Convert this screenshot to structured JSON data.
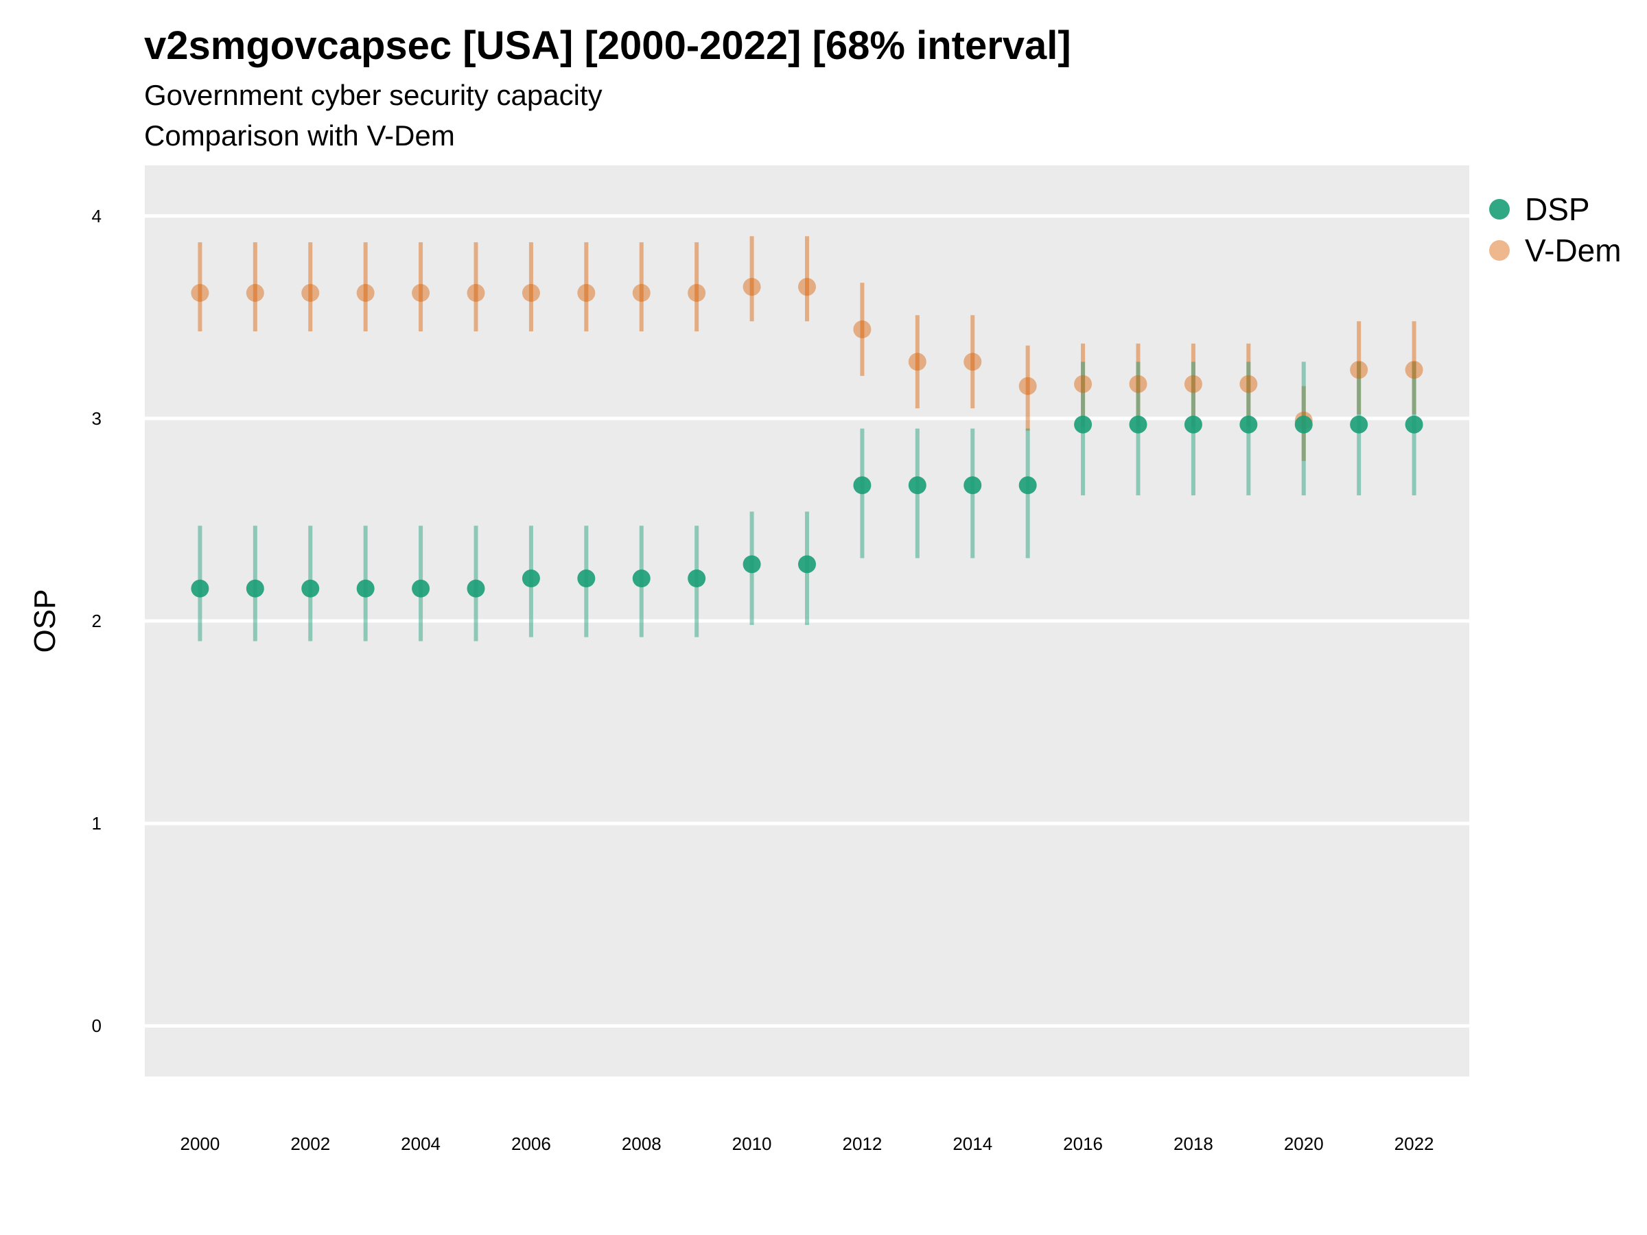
{
  "chart_data": {
    "type": "scatter",
    "title": "v2smgovcapsec [USA] [2000-2022] [68% interval]",
    "subtitle": "Government cyber security capacity",
    "subtitle2": "Comparison with V-Dem",
    "xlabel": "",
    "ylabel": "OSP",
    "xlim": [
      1999,
      2023
    ],
    "ylim": [
      -0.25,
      4.25
    ],
    "yticks": [
      0,
      1,
      2,
      3,
      4
    ],
    "xticks": [
      2000,
      2002,
      2004,
      2006,
      2008,
      2010,
      2012,
      2014,
      2016,
      2018,
      2020,
      2022
    ],
    "grid": true,
    "legend_position": "right",
    "series": [
      {
        "name": "DSP",
        "color": "#1b9e77",
        "x": [
          2000,
          2001,
          2002,
          2003,
          2004,
          2005,
          2006,
          2007,
          2008,
          2009,
          2010,
          2011,
          2012,
          2013,
          2014,
          2015,
          2016,
          2017,
          2018,
          2019,
          2020,
          2021,
          2022
        ],
        "y": [
          2.16,
          2.16,
          2.16,
          2.16,
          2.16,
          2.16,
          2.21,
          2.21,
          2.21,
          2.21,
          2.28,
          2.28,
          2.67,
          2.67,
          2.67,
          2.67,
          2.97,
          2.97,
          2.97,
          2.97,
          2.97,
          2.97,
          2.97
        ],
        "lower": [
          1.9,
          1.9,
          1.9,
          1.9,
          1.9,
          1.9,
          1.92,
          1.92,
          1.92,
          1.92,
          1.98,
          1.98,
          2.31,
          2.31,
          2.31,
          2.31,
          2.62,
          2.62,
          2.62,
          2.62,
          2.62,
          2.62,
          2.62
        ],
        "upper": [
          2.47,
          2.47,
          2.47,
          2.47,
          2.47,
          2.47,
          2.47,
          2.47,
          2.47,
          2.47,
          2.54,
          2.54,
          2.95,
          2.95,
          2.95,
          2.95,
          3.28,
          3.28,
          3.28,
          3.28,
          3.28,
          3.28,
          3.28
        ]
      },
      {
        "name": "V-Dem",
        "color": "#d95f02",
        "x": [
          2000,
          2001,
          2002,
          2003,
          2004,
          2005,
          2006,
          2007,
          2008,
          2009,
          2010,
          2011,
          2012,
          2013,
          2014,
          2015,
          2016,
          2017,
          2018,
          2019,
          2020,
          2021,
          2022
        ],
        "y": [
          3.62,
          3.62,
          3.62,
          3.62,
          3.62,
          3.62,
          3.62,
          3.62,
          3.62,
          3.62,
          3.65,
          3.65,
          3.44,
          3.28,
          3.28,
          3.16,
          3.17,
          3.17,
          3.17,
          3.17,
          2.99,
          3.24,
          3.24
        ],
        "lower": [
          3.43,
          3.43,
          3.43,
          3.43,
          3.43,
          3.43,
          3.43,
          3.43,
          3.43,
          3.43,
          3.48,
          3.48,
          3.21,
          3.05,
          3.05,
          2.94,
          2.96,
          2.96,
          2.96,
          2.96,
          2.79,
          3.02,
          3.02
        ],
        "upper": [
          3.87,
          3.87,
          3.87,
          3.87,
          3.87,
          3.87,
          3.87,
          3.87,
          3.87,
          3.87,
          3.9,
          3.9,
          3.67,
          3.51,
          3.51,
          3.36,
          3.37,
          3.37,
          3.37,
          3.37,
          3.16,
          3.48,
          3.48
        ]
      }
    ]
  }
}
